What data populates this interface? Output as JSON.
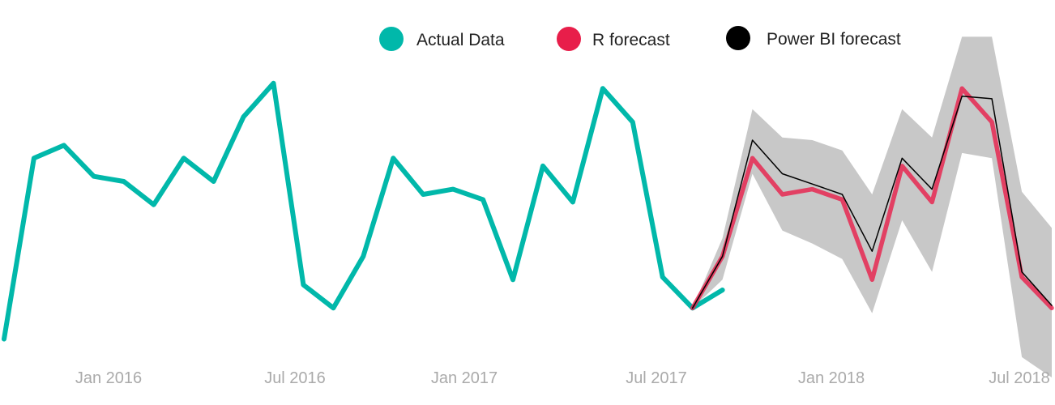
{
  "chart_data": {
    "type": "line",
    "title": "",
    "xlabel": "",
    "ylabel": "",
    "grid": false,
    "legend_placement": "top-center",
    "x_axis": {
      "type": "date",
      "ticks": [
        {
          "label": "Jan 2016",
          "date": "2016-01"
        },
        {
          "label": "Jul 2016",
          "date": "2016-07"
        },
        {
          "label": "Jan 2017",
          "date": "2017-01"
        },
        {
          "label": "Jul 2017",
          "date": "2017-07"
        },
        {
          "label": "Jan 2018",
          "date": "2018-01"
        },
        {
          "label": "Jul 2018",
          "date": "2018-07"
        }
      ]
    },
    "y_axis": {
      "visible": false,
      "range": [
        0,
        100
      ]
    },
    "series": [
      {
        "name": "Actual Data",
        "color": "#01B8AA",
        "points": [
          {
            "date": "2015-09",
            "value": 2
          },
          {
            "date": "2015-10",
            "value": 72
          },
          {
            "date": "2015-11",
            "value": 77
          },
          {
            "date": "2015-12",
            "value": 65
          },
          {
            "date": "2016-01",
            "value": 63
          },
          {
            "date": "2016-02",
            "value": 54
          },
          {
            "date": "2016-03",
            "value": 72
          },
          {
            "date": "2016-04",
            "value": 63
          },
          {
            "date": "2016-05",
            "value": 88
          },
          {
            "date": "2016-06",
            "value": 101
          },
          {
            "date": "2016-07",
            "value": 23
          },
          {
            "date": "2016-08",
            "value": 14
          },
          {
            "date": "2016-09",
            "value": 34
          },
          {
            "date": "2016-10",
            "value": 72
          },
          {
            "date": "2016-11",
            "value": 58
          },
          {
            "date": "2016-12",
            "value": 60
          },
          {
            "date": "2017-01",
            "value": 56
          },
          {
            "date": "2017-02",
            "value": 25
          },
          {
            "date": "2017-03",
            "value": 69
          },
          {
            "date": "2017-04",
            "value": 55
          },
          {
            "date": "2017-05",
            "value": 99
          },
          {
            "date": "2017-06",
            "value": 86
          },
          {
            "date": "2017-07",
            "value": 26
          },
          {
            "date": "2017-08",
            "value": 14
          },
          {
            "date": "2017-09",
            "value": 21
          }
        ]
      },
      {
        "name": "R forecast",
        "color": "#E81E4A",
        "points": [
          {
            "date": "2017-08",
            "value": 14
          },
          {
            "date": "2017-09",
            "value": 34
          },
          {
            "date": "2017-10",
            "value": 72
          },
          {
            "date": "2017-11",
            "value": 58
          },
          {
            "date": "2017-12",
            "value": 60
          },
          {
            "date": "2018-01",
            "value": 56
          },
          {
            "date": "2018-02",
            "value": 25
          },
          {
            "date": "2018-03",
            "value": 69
          },
          {
            "date": "2018-04",
            "value": 55
          },
          {
            "date": "2018-05",
            "value": 99
          },
          {
            "date": "2018-06",
            "value": 86
          },
          {
            "date": "2018-07",
            "value": 26
          },
          {
            "date": "2018-08",
            "value": 14
          }
        ]
      },
      {
        "name": "Power BI forecast",
        "color": "#000000",
        "points": [
          {
            "date": "2017-08",
            "value": 14
          },
          {
            "date": "2017-09",
            "value": 34
          },
          {
            "date": "2017-10",
            "value": 79
          },
          {
            "date": "2017-11",
            "value": 66
          },
          {
            "date": "2017-12",
            "value": 62
          },
          {
            "date": "2018-01",
            "value": 58
          },
          {
            "date": "2018-02",
            "value": 36
          },
          {
            "date": "2018-03",
            "value": 72
          },
          {
            "date": "2018-04",
            "value": 60
          },
          {
            "date": "2018-05",
            "value": 96
          },
          {
            "date": "2018-06",
            "value": 95
          },
          {
            "date": "2018-07",
            "value": 28
          },
          {
            "date": "2018-08",
            "value": 15
          }
        ]
      }
    ],
    "confidence_band": {
      "color": "#C8C8C8",
      "points": [
        {
          "date": "2017-08",
          "upper": 14,
          "lower": 14
        },
        {
          "date": "2017-09",
          "upper": 41,
          "lower": 25
        },
        {
          "date": "2017-10",
          "upper": 91,
          "lower": 66
        },
        {
          "date": "2017-11",
          "upper": 80,
          "lower": 44
        },
        {
          "date": "2017-12",
          "upper": 79,
          "lower": 39
        },
        {
          "date": "2018-01",
          "upper": 75,
          "lower": 33
        },
        {
          "date": "2018-02",
          "upper": 58,
          "lower": 12
        },
        {
          "date": "2018-03",
          "upper": 91,
          "lower": 48
        },
        {
          "date": "2018-04",
          "upper": 80,
          "lower": 28
        },
        {
          "date": "2018-05",
          "upper": 119,
          "lower": 74
        },
        {
          "date": "2018-06",
          "upper": 119,
          "lower": 72
        },
        {
          "date": "2018-07",
          "upper": 59,
          "lower": -5
        },
        {
          "date": "2018-08",
          "upper": 45,
          "lower": -18
        }
      ]
    }
  }
}
